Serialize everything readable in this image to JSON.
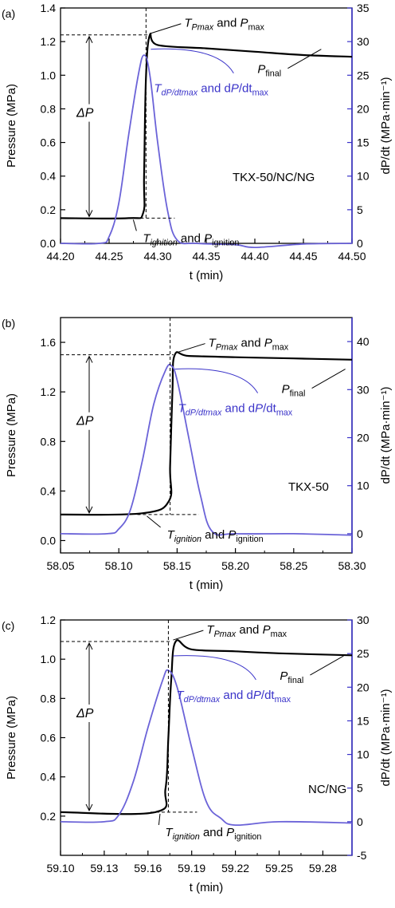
{
  "chart_data": [
    {
      "panel_label": "(a)",
      "type": "line",
      "sample": "TKX-50/NC/NG",
      "xlabel": "t (min)",
      "ylabel_left": "Pressure (MPa)",
      "ylabel_right": "dP/dt (MPa·min⁻¹)",
      "xlim": [
        44.2,
        44.5
      ],
      "ylim_left": [
        0.0,
        1.4
      ],
      "ylim_right": [
        0,
        35
      ],
      "x_ticks": [
        "44.20",
        "44.25",
        "44.30",
        "44.35",
        "44.40",
        "44.45",
        "44.50"
      ],
      "y_ticks_left": [
        "0.0",
        "0.2",
        "0.4",
        "0.6",
        "0.8",
        "1.0",
        "1.2",
        "1.4"
      ],
      "y_ticks_right": [
        "0",
        "5",
        "10",
        "15",
        "20",
        "25",
        "30",
        "35"
      ],
      "series": [
        {
          "axis": "left",
          "color": "#000000",
          "x": [
            44.2,
            44.27,
            44.285,
            44.286,
            44.288,
            44.292,
            44.3,
            44.35,
            44.4,
            44.45,
            44.5
          ],
          "y": [
            0.15,
            0.15,
            0.18,
            0.4,
            1.0,
            1.24,
            1.18,
            1.16,
            1.14,
            1.12,
            1.11
          ]
        },
        {
          "axis": "right",
          "color": "#6b63d8",
          "x": [
            44.2,
            44.24,
            44.25,
            44.26,
            44.27,
            44.28,
            44.286,
            44.292,
            44.3,
            44.31,
            44.32,
            44.34,
            44.38,
            44.4,
            44.45,
            44.5
          ],
          "y": [
            0,
            0,
            1,
            6,
            16,
            25,
            28,
            25,
            15,
            5,
            0.5,
            0,
            -0.2,
            -0.6,
            -0.1,
            0
          ]
        }
      ],
      "markers": {
        "x_peak": 44.288,
        "p_max": 1.24,
        "p_ignition": 0.15,
        "x_ign": 44.27
      },
      "annotations": {
        "tpmax": {
          "T": "T",
          "Tsub": "Pmax",
          "and": " and ",
          "P": "P",
          "Psub": "max"
        },
        "tdp": {
          "T": "T",
          "Tsub": "dP/dtmax",
          "and": " and d",
          "P": "P",
          "rest": "/dt",
          "Psub": "max"
        },
        "pfinal": {
          "P": "P",
          "Psub": "final"
        },
        "tign": {
          "T": "T",
          "Tsub": "ignition",
          "and": " and ",
          "P": "P",
          "Psub": "ignition"
        },
        "dp": "ΔP"
      }
    },
    {
      "panel_label": "(b)",
      "type": "line",
      "sample": "TKX-50",
      "xlabel": "t (min)",
      "ylabel_left": "Pressure (MPa)",
      "ylabel_right": "dP/dt (MPa·min⁻¹)",
      "xlim": [
        58.05,
        58.3
      ],
      "ylim_left": [
        -0.1,
        1.8
      ],
      "ylim_right": [
        -4,
        45
      ],
      "x_ticks": [
        "58.05",
        "58.10",
        "58.15",
        "58.20",
        "58.25",
        "58.30"
      ],
      "y_ticks_left": [
        "0.0",
        "0.4",
        "0.8",
        "1.2",
        "1.6"
      ],
      "y_ticks_right": [
        "0",
        "10",
        "20",
        "30",
        "40"
      ],
      "series": [
        {
          "axis": "left",
          "color": "#000000",
          "x": [
            58.05,
            58.12,
            58.143,
            58.144,
            58.146,
            58.148,
            58.16,
            58.2,
            58.25,
            58.3
          ],
          "y": [
            0.21,
            0.22,
            0.32,
            0.6,
            1.2,
            1.5,
            1.49,
            1.48,
            1.47,
            1.46
          ]
        },
        {
          "axis": "right",
          "color": "#6b63d8",
          "x": [
            58.05,
            58.09,
            58.1,
            58.11,
            58.12,
            58.13,
            58.14,
            58.145,
            58.15,
            58.16,
            58.17,
            58.18,
            58.2,
            58.25,
            58.3
          ],
          "y": [
            0,
            0,
            1,
            5,
            15,
            27,
            34,
            35,
            32,
            20,
            8,
            0.5,
            0,
            0,
            -0.3
          ]
        }
      ],
      "markers": {
        "x_peak": 58.144,
        "p_max": 1.5,
        "p_ignition": 0.21,
        "x_ign": 58.12
      },
      "annotations": {
        "tpmax": {
          "T": "T",
          "Tsub": "Pmax",
          "and": " and ",
          "P": "P",
          "Psub": "max"
        },
        "tdp": {
          "T": "T",
          "Tsub": "dP/dtmax",
          "and": " and d",
          "P": "P",
          "rest": "/dt",
          "Psub": "max"
        },
        "pfinal": {
          "P": "P",
          "Psub": "final"
        },
        "tign": {
          "T": "T",
          "Tsub": "ignition",
          "and": " and ",
          "P": "P",
          "Psub": "ignition"
        },
        "dp": "ΔP"
      }
    },
    {
      "panel_label": "(c)",
      "type": "line",
      "sample": "NC/NG",
      "xlabel": "t (min)",
      "ylabel_left": "Pressure (MPa)",
      "ylabel_right": "dP/dt (MPa·min⁻¹)",
      "xlim": [
        59.1,
        59.3
      ],
      "ylim_left": [
        0.0,
        1.2
      ],
      "ylim_right": [
        -5,
        30
      ],
      "x_ticks": [
        "59.10",
        "59.13",
        "59.16",
        "59.19",
        "59.22",
        "59.25",
        "59.28"
      ],
      "y_ticks_left": [
        "0.2",
        "0.4",
        "0.6",
        "0.8",
        "1.0",
        "1.2"
      ],
      "y_ticks_right": [
        "-5",
        "0",
        "5",
        "10",
        "15",
        "20",
        "25",
        "30"
      ],
      "series": [
        {
          "axis": "left",
          "color": "#000000",
          "x": [
            59.1,
            59.165,
            59.172,
            59.174,
            59.176,
            59.179,
            59.19,
            59.22,
            59.25,
            59.3
          ],
          "y": [
            0.22,
            0.22,
            0.34,
            0.6,
            0.9,
            1.09,
            1.05,
            1.04,
            1.03,
            1.02
          ],
          "x_ticks_at": [
            59.1,
            59.13,
            59.16,
            59.19,
            59.22,
            59.25,
            59.28
          ]
        },
        {
          "axis": "right",
          "color": "#6b63d8",
          "x": [
            59.1,
            59.13,
            59.14,
            59.15,
            59.16,
            59.17,
            59.174,
            59.18,
            59.19,
            59.2,
            59.21,
            59.22,
            59.25,
            59.3
          ],
          "y": [
            0,
            0,
            1,
            6,
            14,
            21,
            22.5,
            20,
            11,
            3,
            0.5,
            -0.5,
            0,
            -0.2
          ]
        }
      ],
      "y_ticks_left_values": [
        0.2,
        0.4,
        0.6,
        0.8,
        1.0,
        1.2
      ],
      "markers": {
        "x_peak": 59.174,
        "p_max": 1.09,
        "p_ignition": 0.22,
        "x_ign": 59.165
      },
      "annotations": {
        "tpmax": {
          "T": "T",
          "Tsub": "Pmax",
          "and": " and ",
          "P": "P",
          "Psub": "max"
        },
        "tdp": {
          "T": "T",
          "Tsub": "dP/dtmax",
          "and": " and d",
          "P": "P",
          "rest": "/dt",
          "Psub": "max"
        },
        "pfinal": {
          "P": "P",
          "Psub": "final"
        },
        "tign": {
          "T": "T",
          "Tsub": "ignition",
          "and": " and ",
          "P": "P",
          "Psub": "ignition"
        },
        "dp": "ΔP"
      }
    }
  ],
  "colors": {
    "blue": "#6b63d8",
    "blue_text": "#3a33c9",
    "black": "#000000"
  }
}
